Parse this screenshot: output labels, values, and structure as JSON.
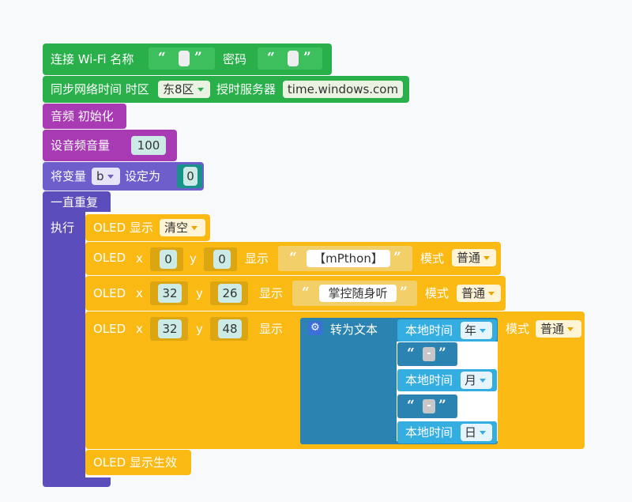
{
  "wifi": {
    "label": "连接 Wi-Fi 名称",
    "password_label": "密码",
    "q_open": "“",
    "q_close": "”"
  },
  "ntp": {
    "label": "同步网络时间 时区",
    "zone": "东8区",
    "server_label": "授时服务器",
    "server": "time.windows.com"
  },
  "audio": {
    "init_label": "音频 初始化",
    "volume_label": "设音频音量",
    "volume": "100"
  },
  "var": {
    "label": "将变量",
    "name": "b",
    "set_label": "设定为",
    "value": "0"
  },
  "loop": {
    "label": "一直重复",
    "do_label": "执行"
  },
  "oled_clear": {
    "label": "OLED 显示",
    "mode": "清空"
  },
  "oled_rows": [
    {
      "label": "OLED",
      "x_label": "x",
      "x": "0",
      "y_label": "y",
      "y": "0",
      "show_label": "显示",
      "text": "【mPthon】",
      "mode_label": "模式",
      "mode": "普通"
    },
    {
      "label": "OLED",
      "x_label": "x",
      "x": "32",
      "y_label": "y",
      "y": "26",
      "show_label": "显示",
      "text": "掌控随身听",
      "mode_label": "模式",
      "mode": "普通"
    },
    {
      "label": "OLED",
      "x_label": "x",
      "x": "32",
      "y_label": "y",
      "y": "48",
      "show_label": "显示",
      "mode_label": "模式",
      "mode": "普通"
    }
  ],
  "to_text": {
    "label": "转为文本"
  },
  "local_time": [
    {
      "label": "本地时间",
      "unit": "年"
    },
    {
      "label": "本地时间",
      "unit": "月"
    },
    {
      "label": "本地时间",
      "unit": "日"
    }
  ],
  "dash": "-",
  "oled_show": {
    "label": "OLED 显示生效"
  },
  "colors": {
    "green": "#2ab04b",
    "magenta": "#a83ab4",
    "purple": "#6e5ecb",
    "violet": "#5b4dbb",
    "yellow": "#fbb914",
    "blue": "#2a83b0",
    "cyan": "#34aee0",
    "teal": "#19928c"
  }
}
